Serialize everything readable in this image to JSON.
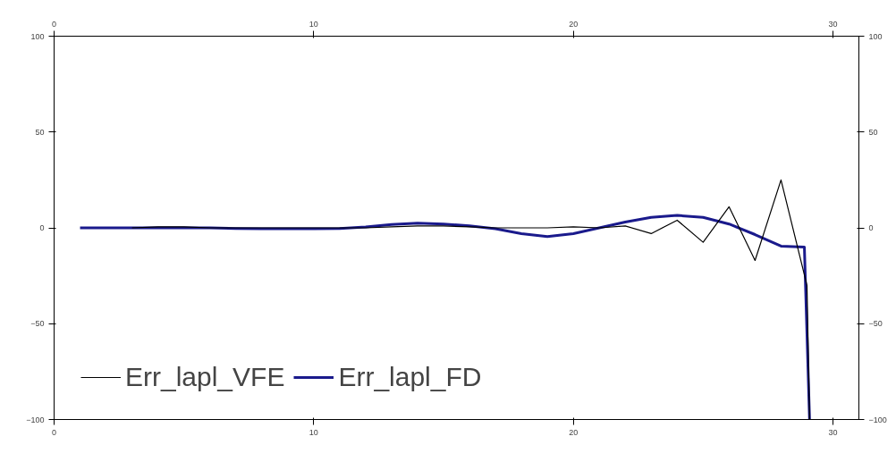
{
  "chart_data": {
    "type": "line",
    "xlim": [
      0,
      31
    ],
    "xticks": [
      0,
      10,
      20,
      30
    ],
    "x2lim": [
      0,
      31
    ],
    "x2ticks": [
      0,
      10,
      20,
      30
    ],
    "ylim": [
      -100,
      100
    ],
    "yticks": [
      -100,
      -50,
      0,
      50,
      100
    ],
    "y2lim": [
      -100,
      100
    ],
    "y2ticks": [
      -100,
      -50,
      0,
      50,
      100
    ],
    "grid": false,
    "legend": "bottom left",
    "line_style": "solid",
    "marker": "none",
    "series": [
      {
        "name": "Err_lapl_VFE",
        "color": "#000000",
        "x": [
          3,
          4,
          5,
          6,
          7,
          8,
          9,
          10,
          11,
          12,
          13,
          14,
          15,
          16,
          17,
          18,
          19,
          20,
          21,
          22,
          23,
          24,
          25,
          26,
          27,
          28,
          29,
          29.1
        ],
        "values": [
          0,
          0.5,
          0.5,
          0,
          0,
          0,
          0,
          0,
          0,
          0,
          0.5,
          1,
          1,
          0.5,
          0,
          0,
          0,
          0.5,
          0,
          1,
          -3,
          4,
          -7.5,
          11,
          -17,
          25,
          -30,
          -100
        ]
      },
      {
        "name": "Err_lapl_FD",
        "color": "#1a1a8c",
        "x": [
          1,
          2,
          3,
          4,
          5,
          6,
          7,
          8,
          9,
          10,
          11,
          12,
          13,
          14,
          15,
          16,
          17,
          18,
          19,
          20,
          21,
          22,
          23,
          24,
          25,
          26,
          27,
          28,
          28.9,
          29.1
        ],
        "values": [
          0,
          0,
          0,
          0,
          0,
          0,
          -0.3,
          -0.5,
          -0.5,
          -0.5,
          -0.3,
          0.5,
          1.8,
          2.5,
          2,
          1,
          -0.5,
          -3,
          -4.5,
          -3,
          0,
          3,
          5.5,
          6.5,
          5.5,
          2,
          -3.5,
          -9.5,
          -10,
          -100
        ]
      }
    ]
  }
}
